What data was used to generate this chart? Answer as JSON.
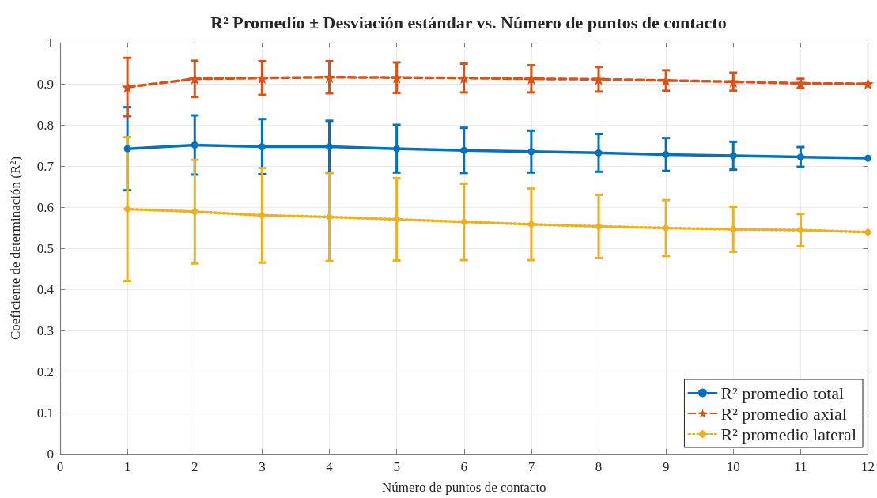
{
  "chart_data": {
    "type": "line",
    "title": "R² Promedio ± Desviación estándar vs. Número de puntos de contacto",
    "xlabel": "Número de puntos de contacto",
    "ylabel": "Coeficiente de determinación (R²)",
    "x": [
      1,
      2,
      3,
      4,
      5,
      6,
      7,
      8,
      9,
      10,
      11,
      12
    ],
    "series": [
      {
        "name": "R² promedio total",
        "color": "#0072bd",
        "marker": "circle",
        "line_style": "solid",
        "values": [
          0.742,
          0.751,
          0.747,
          0.747,
          0.742,
          0.738,
          0.735,
          0.732,
          0.728,
          0.725,
          0.722,
          0.719
        ],
        "errors": [
          0.101,
          0.072,
          0.067,
          0.063,
          0.058,
          0.055,
          0.051,
          0.046,
          0.04,
          0.034,
          0.024,
          null
        ]
      },
      {
        "name": "R² promedio axial",
        "color": "#d95319",
        "marker": "star",
        "line_style": "dashed",
        "values": [
          0.892,
          0.912,
          0.914,
          0.916,
          0.915,
          0.914,
          0.912,
          0.911,
          0.908,
          0.905,
          0.901,
          0.9
        ],
        "errors": [
          0.071,
          0.044,
          0.041,
          0.039,
          0.037,
          0.035,
          0.033,
          0.03,
          0.025,
          0.022,
          0.011,
          null
        ]
      },
      {
        "name": "R² promedio lateral",
        "color": "#edb120",
        "marker": "diamond",
        "line_style": "dotted",
        "values": [
          0.595,
          0.589,
          0.58,
          0.576,
          0.57,
          0.564,
          0.558,
          0.553,
          0.549,
          0.546,
          0.544,
          0.539
        ],
        "errors": [
          0.175,
          0.126,
          0.115,
          0.107,
          0.1,
          0.093,
          0.087,
          0.077,
          0.068,
          0.055,
          0.039,
          null
        ]
      }
    ],
    "xlim": [
      0,
      12
    ],
    "xticks": [
      0,
      1,
      2,
      3,
      4,
      5,
      6,
      7,
      8,
      9,
      10,
      11,
      12
    ],
    "ylim": [
      0,
      1
    ],
    "yticks": [
      0,
      0.1,
      0.2,
      0.3,
      0.4,
      0.5,
      0.6,
      0.7,
      0.8,
      0.9,
      1
    ],
    "grid": true,
    "legend": "bottom right"
  }
}
